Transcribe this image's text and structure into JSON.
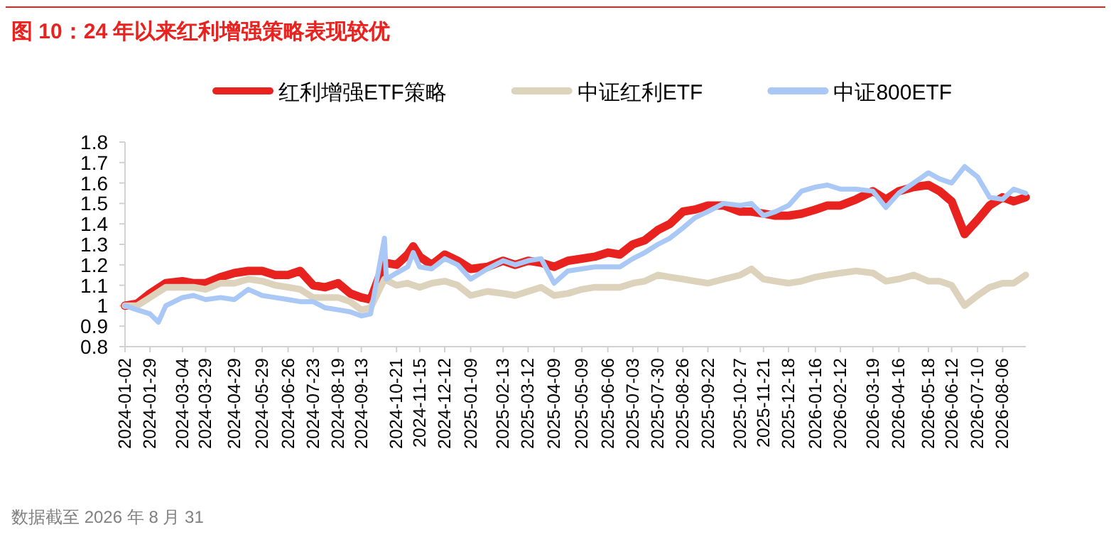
{
  "chart_data": {
    "type": "line",
    "title": "图 10：24 年以来红利增强策略表现较优",
    "annotations": [
      "数据截至 2026 年 8 月 31"
    ],
    "x": [
      "2024-01-02",
      "2024-01-15",
      "2024-01-29",
      "2024-02-15",
      "2024-03-04",
      "2024-03-16",
      "2024-03-29",
      "2024-04-14",
      "2024-04-29",
      "2024-05-14",
      "2024-05-29",
      "2024-06-12",
      "2024-06-26",
      "2024-07-09",
      "2024-07-23",
      "2024-08-05",
      "2024-08-19",
      "2024-09-01",
      "2024-09-13",
      "2024-09-23",
      "2024-10-08",
      "2024-10-21",
      "2024-11-02",
      "2024-11-08",
      "2024-11-15",
      "2024-11-28",
      "2024-12-12",
      "2024-12-26",
      "2025-01-09",
      "2025-01-27",
      "2025-02-13",
      "2025-02-26",
      "2025-03-12",
      "2025-03-26",
      "2025-04-09",
      "2025-04-24",
      "2025-05-09",
      "2025-05-23",
      "2025-06-06",
      "2025-06-19",
      "2025-07-03",
      "2025-07-16",
      "2025-07-30",
      "2025-08-12",
      "2025-08-26",
      "2025-09-08",
      "2025-09-22",
      "2025-10-09",
      "2025-10-27",
      "2025-11-08",
      "2025-11-21",
      "2025-12-04",
      "2025-12-18",
      "2026-01-01",
      "2026-01-16",
      "2026-01-29",
      "2026-02-12",
      "2026-03-01",
      "2026-03-19",
      "2026-04-02",
      "2026-04-16",
      "2026-05-02",
      "2026-05-18",
      "2026-05-30",
      "2026-06-12",
      "2026-06-26",
      "2026-07-10",
      "2026-07-23",
      "2026-08-06",
      "2026-08-18",
      "2026-08-31"
    ],
    "series": [
      {
        "name": "红利增强ETF策略",
        "color": "#e8231f",
        "values": [
          1.0,
          1.01,
          1.06,
          1.11,
          1.12,
          1.11,
          1.11,
          1.14,
          1.16,
          1.17,
          1.17,
          1.15,
          1.15,
          1.17,
          1.1,
          1.09,
          1.11,
          1.06,
          1.04,
          1.03,
          1.21,
          1.2,
          1.25,
          1.29,
          1.24,
          1.2,
          1.25,
          1.22,
          1.18,
          1.19,
          1.22,
          1.2,
          1.22,
          1.21,
          1.19,
          1.22,
          1.23,
          1.24,
          1.26,
          1.25,
          1.3,
          1.32,
          1.37,
          1.4,
          1.46,
          1.47,
          1.49,
          1.49,
          1.46,
          1.46,
          1.45,
          1.44,
          1.44,
          1.45,
          1.47,
          1.49,
          1.49,
          1.52,
          1.56,
          1.52,
          1.56,
          1.58,
          1.59,
          1.56,
          1.51,
          1.35,
          1.42,
          1.49,
          1.53,
          1.51,
          1.53
        ]
      },
      {
        "name": "中证红利ETF",
        "color": "#ddd3bd",
        "values": [
          1.0,
          1.0,
          1.04,
          1.09,
          1.09,
          1.09,
          1.08,
          1.11,
          1.11,
          1.13,
          1.12,
          1.1,
          1.09,
          1.08,
          1.04,
          1.04,
          1.04,
          1.02,
          0.98,
          0.99,
          1.13,
          1.1,
          1.11,
          1.1,
          1.09,
          1.11,
          1.12,
          1.1,
          1.05,
          1.07,
          1.06,
          1.05,
          1.07,
          1.09,
          1.05,
          1.06,
          1.08,
          1.09,
          1.09,
          1.09,
          1.11,
          1.12,
          1.15,
          1.14,
          1.13,
          1.12,
          1.11,
          1.13,
          1.15,
          1.18,
          1.13,
          1.12,
          1.11,
          1.12,
          1.14,
          1.15,
          1.16,
          1.17,
          1.16,
          1.12,
          1.13,
          1.15,
          1.12,
          1.12,
          1.1,
          1.0,
          1.05,
          1.09,
          1.11,
          1.11,
          1.15
        ]
      },
      {
        "name": "中证800ETF",
        "color": "#a9c8f5",
        "x": [
          "2024-01-02",
          "2024-01-15",
          "2024-01-29",
          "2024-02-07",
          "2024-02-15",
          "2024-03-04",
          "2024-03-16",
          "2024-03-29",
          "2024-04-14",
          "2024-04-29",
          "2024-05-14",
          "2024-05-29",
          "2024-06-12",
          "2024-06-26",
          "2024-07-09",
          "2024-07-23",
          "2024-08-05",
          "2024-08-19",
          "2024-09-01",
          "2024-09-13",
          "2024-09-23",
          "2024-10-08",
          "2024-10-10",
          "2024-10-21",
          "2024-11-02",
          "2024-11-08",
          "2024-11-15",
          "2024-11-28",
          "2024-12-12",
          "2024-12-26",
          "2025-01-09",
          "2025-01-27",
          "2025-02-13",
          "2025-02-26",
          "2025-03-12",
          "2025-03-26",
          "2025-04-09",
          "2025-04-24",
          "2025-05-09",
          "2025-05-23",
          "2025-06-06",
          "2025-06-19",
          "2025-07-03",
          "2025-07-16",
          "2025-07-30",
          "2025-08-12",
          "2025-08-26",
          "2025-09-08",
          "2025-09-22",
          "2025-10-09",
          "2025-10-27",
          "2025-11-08",
          "2025-11-21",
          "2025-12-04",
          "2025-12-18",
          "2026-01-01",
          "2026-01-16",
          "2026-01-29",
          "2026-02-12",
          "2026-03-01",
          "2026-03-19",
          "2026-04-02",
          "2026-04-16",
          "2026-05-02",
          "2026-05-18",
          "2026-05-30",
          "2026-06-12",
          "2026-06-26",
          "2026-07-10",
          "2026-07-23",
          "2026-08-06",
          "2026-08-18",
          "2026-08-31"
        ],
        "values": [
          1.0,
          0.98,
          0.96,
          0.92,
          1.0,
          1.04,
          1.05,
          1.03,
          1.04,
          1.03,
          1.08,
          1.05,
          1.04,
          1.03,
          1.02,
          1.02,
          0.99,
          0.98,
          0.97,
          0.95,
          0.96,
          1.33,
          1.13,
          1.16,
          1.19,
          1.26,
          1.19,
          1.18,
          1.23,
          1.2,
          1.13,
          1.18,
          1.22,
          1.2,
          1.22,
          1.23,
          1.11,
          1.17,
          1.18,
          1.19,
          1.19,
          1.19,
          1.23,
          1.26,
          1.3,
          1.33,
          1.38,
          1.43,
          1.46,
          1.5,
          1.49,
          1.5,
          1.44,
          1.46,
          1.49,
          1.56,
          1.58,
          1.59,
          1.57,
          1.57,
          1.56,
          1.48,
          1.55,
          1.6,
          1.65,
          1.62,
          1.6,
          1.68,
          1.63,
          1.53,
          1.52,
          1.57,
          1.55
        ]
      }
    ],
    "xlim": [
      "2024-01-02",
      "2026-08-31"
    ],
    "xticks": [
      "2024-01-02",
      "2024-01-29",
      "2024-03-04",
      "2024-03-29",
      "2024-04-29",
      "2024-05-29",
      "2024-06-26",
      "2024-07-23",
      "2024-08-19",
      "2024-09-13",
      "2024-10-21",
      "2024-11-15",
      "2024-12-12",
      "2025-01-09",
      "2025-02-13",
      "2025-03-12",
      "2025-04-09",
      "2025-05-09",
      "2025-06-06",
      "2025-07-03",
      "2025-07-30",
      "2025-08-26",
      "2025-09-22",
      "2025-10-27",
      "2025-11-21",
      "2025-12-18",
      "2026-01-16",
      "2026-02-12",
      "2026-03-19",
      "2026-04-16",
      "2026-05-18",
      "2026-06-12",
      "2026-07-10",
      "2026-08-06"
    ],
    "ylim": [
      0.8,
      1.8
    ],
    "yticks": [
      0.8,
      0.9,
      1,
      1.1,
      1.2,
      1.3,
      1.4,
      1.5,
      1.6,
      1.7,
      1.8
    ],
    "legend": "top",
    "grid": false,
    "marker": "none",
    "line_style": "solid"
  }
}
